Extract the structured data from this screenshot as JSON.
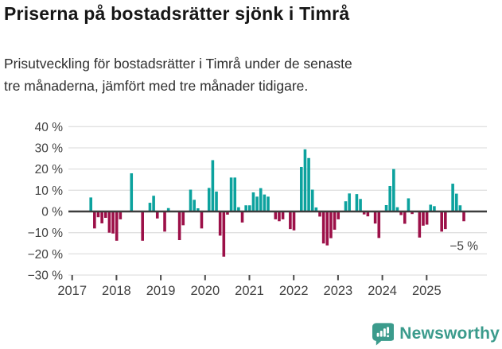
{
  "header": {
    "title": "Priserna på bostadsrätter sjönk i Timrå",
    "subtitle_line1": "Prisutveckling för bostadsrätter i Timrå under de senaste",
    "subtitle_line2": "tre månaderna, jämfört med tre månader tidigare."
  },
  "chart_data": {
    "type": "bar",
    "title": "Prisutveckling för bostadsrätter i Timrå, 3 månader jämfört med 3 månader tidigare",
    "unit": "%",
    "frequency": "monthly",
    "start_month": "2017-06",
    "values": [
      6.6,
      -8,
      -2.7,
      -5.6,
      -3,
      -10,
      -10.4,
      -13.8,
      -3.7,
      0,
      0,
      18,
      0,
      0,
      -13.8,
      0,
      4.1,
      7.4,
      -3.3,
      0,
      -9.5,
      1.6,
      0,
      0,
      -13.5,
      -6.5,
      0,
      10.3,
      5.5,
      1.5,
      -8,
      0,
      11.1,
      24.2,
      9.4,
      -11.4,
      -21.3,
      -1.5,
      16,
      16,
      2,
      -5.2,
      2.9,
      2.9,
      9,
      7,
      11,
      8,
      7,
      0,
      -3.7,
      -4.6,
      -3.7,
      0,
      -8.3,
      -8.9,
      0,
      21,
      29.3,
      25.2,
      10.3,
      1.9,
      -2.4,
      -15.1,
      -16,
      -12.6,
      -8.6,
      -3.7,
      0,
      4.8,
      8.5,
      0,
      8.2,
      5.9,
      -1.4,
      -2.3,
      0,
      -5.7,
      -12.5,
      0,
      3,
      12,
      20,
      2,
      -1.7,
      -5.8,
      6.2,
      -1.2,
      0,
      -12.3,
      -6.7,
      -6.2,
      3.2,
      2.5,
      0,
      -9.5,
      -8.3,
      0,
      13.1,
      8.4,
      2.9,
      -4.6
    ],
    "x_tick_labels": [
      "2017",
      "2018",
      "2019",
      "2020",
      "2021",
      "2022",
      "2023",
      "2024",
      "2025"
    ],
    "y_tick_labels": [
      "40 %",
      "30 %",
      "20 %",
      "10 %",
      "0 %",
      "−10 %",
      "−20 %",
      "−30 %"
    ],
    "y_tick_values": [
      40,
      30,
      20,
      10,
      0,
      -10,
      -20,
      -30
    ],
    "ylim": [
      -30,
      40
    ],
    "grid": true,
    "legend": "none",
    "annotation": {
      "label": "−5 %",
      "value": -4.6,
      "position": "last-bar"
    },
    "colors": {
      "positive": "#0ca29e",
      "negative": "#9c1048",
      "grid": "#e0e0e0",
      "zero_line": "#3d3d3d",
      "axis_text": "#404040"
    }
  },
  "footer": {
    "brand": "Newsworthy",
    "brand_color": "#3b9b8c",
    "logo_icon": "speech-bubble-bar-chart-icon"
  }
}
